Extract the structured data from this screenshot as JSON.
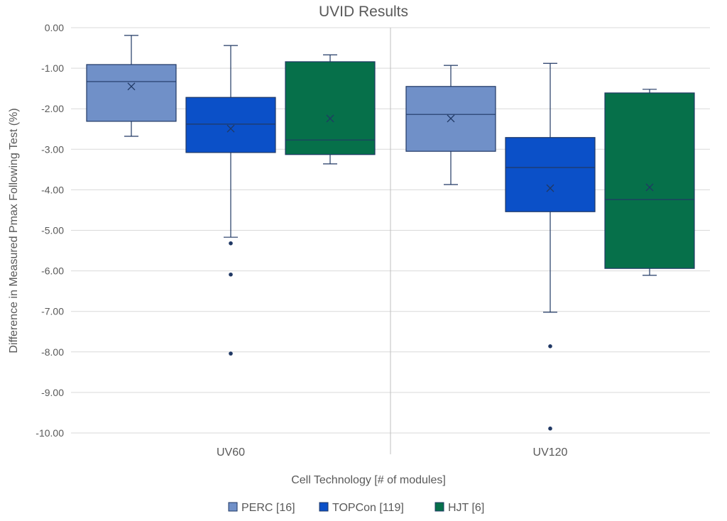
{
  "chart_data": {
    "type": "box",
    "title": "UVID Results",
    "xlabel": "Cell Technology [# of modules]",
    "ylabel": "Difference in Measured Pmax Following Test (%)",
    "ylim": [
      -10,
      0
    ],
    "yticks": [
      "0.00",
      "-1.00",
      "-2.00",
      "-3.00",
      "-4.00",
      "-5.00",
      "-6.00",
      "-7.00",
      "-8.00",
      "-9.00",
      "-10.00"
    ],
    "grid": true,
    "legend_position": "bottom",
    "categories": [
      "UV60",
      "UV120"
    ],
    "series": [
      {
        "name": "PERC [16]",
        "color": "#7090C8",
        "boxes": [
          {
            "whisker_high": -0.19,
            "q3": -0.91,
            "median": -1.33,
            "mean": -1.45,
            "q1": -2.31,
            "whisker_low": -2.68,
            "outliers": []
          },
          {
            "whisker_high": -0.93,
            "q3": -1.45,
            "median": -2.14,
            "mean": -2.24,
            "q1": -3.05,
            "whisker_low": -3.87,
            "outliers": []
          }
        ]
      },
      {
        "name": "TOPCon [119]",
        "color": "#0B50C8",
        "boxes": [
          {
            "whisker_high": -0.44,
            "q3": -1.72,
            "median": -2.38,
            "mean": -2.49,
            "q1": -3.08,
            "whisker_low": -5.17,
            "outliers": [
              -5.32,
              -6.09,
              -8.04
            ]
          },
          {
            "whisker_high": -0.88,
            "q3": -2.71,
            "median": -3.45,
            "mean": -3.96,
            "q1": -4.54,
            "whisker_low": -7.02,
            "outliers": [
              -7.86,
              -9.89
            ]
          }
        ]
      },
      {
        "name": "HJT [6]",
        "color": "#06704A",
        "boxes": [
          {
            "whisker_high": -0.67,
            "q3": -0.84,
            "median": -2.77,
            "mean": -2.24,
            "q1": -3.13,
            "whisker_low": -3.36,
            "outliers": []
          },
          {
            "whisker_high": -1.52,
            "q3": -1.61,
            "median": -4.24,
            "mean": -3.94,
            "q1": -5.94,
            "whisker_low": -6.11,
            "outliers": []
          }
        ]
      }
    ]
  }
}
